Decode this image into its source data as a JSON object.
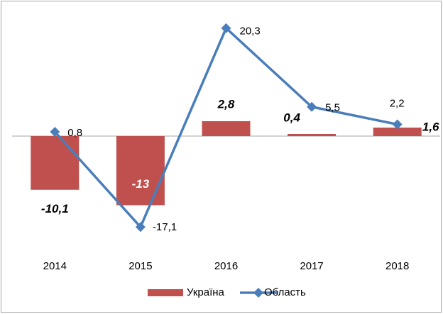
{
  "chart_data": {
    "type": "bar-line",
    "categories": [
      "2014",
      "2015",
      "2016",
      "2017",
      "2018"
    ],
    "ylim": [
      -20,
      25
    ],
    "legend": "bottom",
    "series": [
      {
        "name": "Україна",
        "type": "bar",
        "color": "#c0504d",
        "values": [
          -10.1,
          -13,
          2.8,
          0.4,
          1.6
        ],
        "value_labels": [
          "-10,1",
          "-13",
          "2,8",
          "0,4",
          "1,6"
        ]
      },
      {
        "name": "Область",
        "type": "line",
        "color": "#4a7ebb",
        "values": [
          0.8,
          -17.1,
          20.3,
          5.5,
          2.2
        ],
        "value_labels": [
          "0,8",
          "-17,1",
          "20,3",
          "5,5",
          "2,2"
        ]
      }
    ]
  }
}
